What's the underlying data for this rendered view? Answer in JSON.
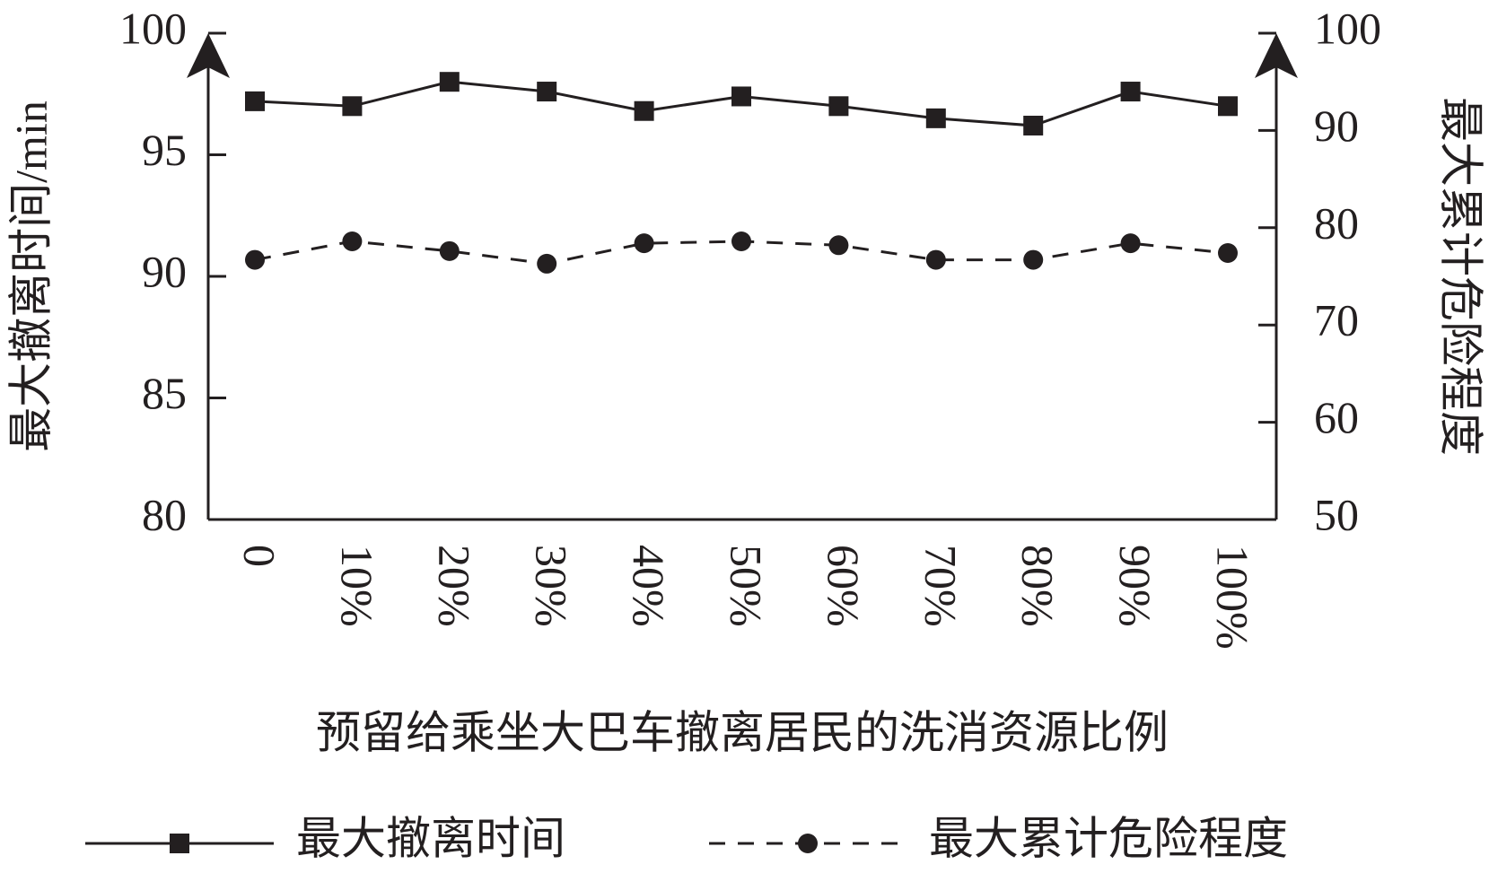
{
  "chart_data": {
    "type": "line",
    "x_label": "预留给乘坐大巴车撤离居民的洗消资源比例",
    "y_label": "最大撤离时间/min",
    "y2_label": "最大累计危险程度",
    "categories": [
      "0",
      "10%",
      "20%",
      "30%",
      "40%",
      "50%",
      "60%",
      "70%",
      "80%",
      "90%",
      "100%"
    ],
    "series": [
      {
        "name": "最大撤离时间",
        "color": "#231f20",
        "marker": "square",
        "dash": false,
        "values": [
          97.2,
          97.0,
          98.0,
          97.6,
          96.8,
          97.4,
          97.0,
          96.5,
          96.2,
          97.6,
          97.0
        ]
      },
      {
        "name": "最大累计危险程度",
        "color": "#231f20",
        "marker": "circle",
        "dash": true,
        "axis": "y2",
        "values": [
          76.7,
          78.6,
          77.6,
          76.3,
          78.4,
          78.6,
          78.2,
          76.7,
          76.7,
          78.4,
          77.4
        ]
      }
    ],
    "ylim": [
      80,
      100
    ],
    "yticks": [
      80,
      85,
      90,
      95,
      100
    ],
    "y2lim": [
      50,
      100
    ],
    "y2ticks": [
      50,
      60,
      70,
      80,
      90,
      100
    ]
  }
}
